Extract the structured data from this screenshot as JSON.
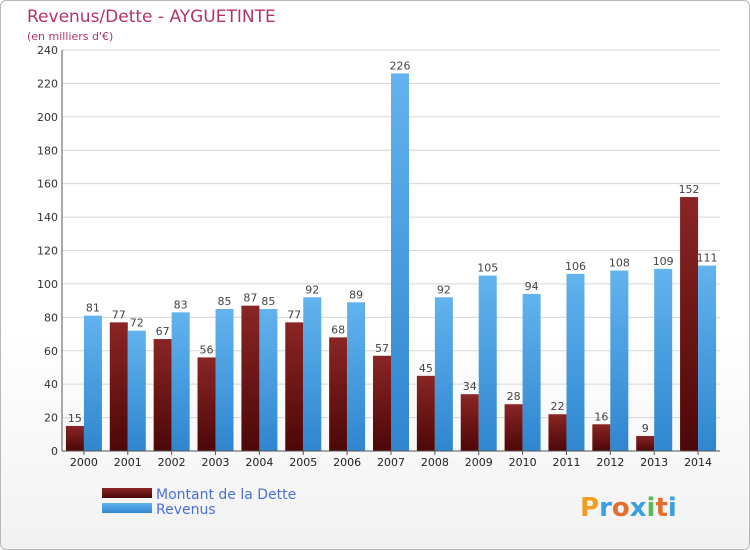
{
  "title": "Revenus/Dette - AYGUETINTE",
  "subtitle": "(en milliers d'€)",
  "brand": "Proxiti",
  "chart_data": {
    "type": "bar",
    "categories": [
      "2000",
      "2001",
      "2002",
      "2003",
      "2004",
      "2005",
      "2006",
      "2007",
      "2008",
      "2009",
      "2010",
      "2011",
      "2012",
      "2013",
      "2014"
    ],
    "series": [
      {
        "name": "Montant de la Dette",
        "color": "#7a1616",
        "values": [
          15,
          77,
          67,
          56,
          87,
          77,
          68,
          57,
          45,
          34,
          28,
          22,
          16,
          9,
          152
        ]
      },
      {
        "name": "Revenus",
        "color": "#4a9fe0",
        "values": [
          81,
          72,
          83,
          85,
          85,
          92,
          89,
          226,
          92,
          105,
          94,
          106,
          108,
          109,
          111
        ]
      }
    ],
    "ylim": [
      0,
      240
    ],
    "yticks": [
      0,
      20,
      40,
      60,
      80,
      100,
      120,
      140,
      160,
      180,
      200,
      220,
      240
    ],
    "grid": true,
    "legend": "bottom-left",
    "xlabel": "",
    "ylabel": ""
  }
}
